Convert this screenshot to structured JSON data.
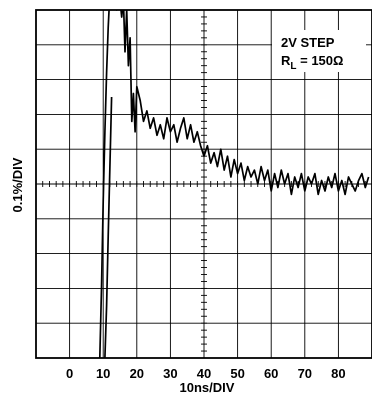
{
  "chart_data": {
    "type": "line",
    "xlabel": "10ns/DIV",
    "ylabel": "0.1%/DIV",
    "xlim": [
      -10,
      90
    ],
    "ylim": [
      -0.5,
      0.5
    ],
    "x_ticks": [
      0,
      10,
      20,
      30,
      40,
      50,
      60,
      70,
      80
    ],
    "grid": true,
    "legend_placement": "top-right",
    "annotation_line1": "2V STEP",
    "annotation_line2_prefix": "R",
    "annotation_line2_sub": "L",
    "annotation_line2_suffix": " = 150Ω",
    "series": [
      {
        "values_x": [
          9.0,
          9.5,
          10.0,
          10.5,
          11.0,
          11.5,
          12.0,
          12.5,
          13.0,
          13.5,
          14.0,
          14.5,
          15.0
        ],
        "values_y": [
          -0.5,
          -0.3,
          -0.05,
          0.15,
          0.32,
          0.45,
          0.55,
          0.65,
          0.55,
          0.6,
          0.5,
          0.52,
          0.53
        ]
      },
      {
        "values_x": [
          10.5,
          11.0,
          11.5,
          12.0,
          12.5
        ],
        "values_y": [
          -0.5,
          -0.35,
          -0.15,
          0.05,
          0.25
        ]
      },
      {
        "values_x": [
          15.0,
          15.5,
          16.0,
          16.5,
          17.0,
          17.5,
          18.0,
          18.5,
          19.0,
          19.5,
          20.0,
          21.0,
          22.0,
          23.0,
          24.0,
          25.0,
          26.0,
          27.0,
          28.0,
          29.0,
          30.0,
          31.0,
          32.0,
          33.0,
          34.0,
          35.0,
          36.0,
          37.0,
          38.0,
          39.0,
          40.0,
          41.0,
          42.0,
          43.0,
          44.0,
          45.0,
          46.0,
          47.0,
          48.0,
          49.0,
          50.0,
          51.0,
          52.0,
          53.0,
          54.0,
          55.0,
          56.0,
          57.0,
          58.0,
          59.0,
          60.0,
          61.0,
          62.0,
          63.0,
          64.0,
          65.0,
          66.0,
          67.0,
          68.0,
          69.0,
          70.0,
          71.0,
          72.0,
          73.0,
          74.0,
          75.0,
          76.0,
          77.0,
          78.0,
          79.0,
          80.0,
          81.0,
          82.0,
          83.0,
          84.0,
          85.0,
          86.0,
          87.0,
          88.0,
          89.0
        ],
        "values_y": [
          0.53,
          0.48,
          0.53,
          0.38,
          0.5,
          0.34,
          0.42,
          0.18,
          0.26,
          0.15,
          0.28,
          0.24,
          0.18,
          0.21,
          0.16,
          0.19,
          0.14,
          0.17,
          0.13,
          0.19,
          0.15,
          0.17,
          0.12,
          0.16,
          0.19,
          0.13,
          0.17,
          0.12,
          0.15,
          0.11,
          0.08,
          0.11,
          0.06,
          0.09,
          0.05,
          0.1,
          0.04,
          0.08,
          0.02,
          0.07,
          0.03,
          0.06,
          0.01,
          0.05,
          0.02,
          0.04,
          0.0,
          0.05,
          0.01,
          0.04,
          -0.02,
          0.03,
          -0.01,
          0.04,
          0.0,
          0.03,
          -0.03,
          0.02,
          -0.01,
          0.03,
          -0.02,
          0.02,
          0.0,
          0.03,
          -0.03,
          0.01,
          -0.02,
          0.02,
          -0.01,
          0.03,
          -0.02,
          0.01,
          -0.03,
          0.02,
          0.0,
          -0.02,
          0.01,
          0.03,
          -0.01,
          0.02
        ]
      }
    ]
  }
}
